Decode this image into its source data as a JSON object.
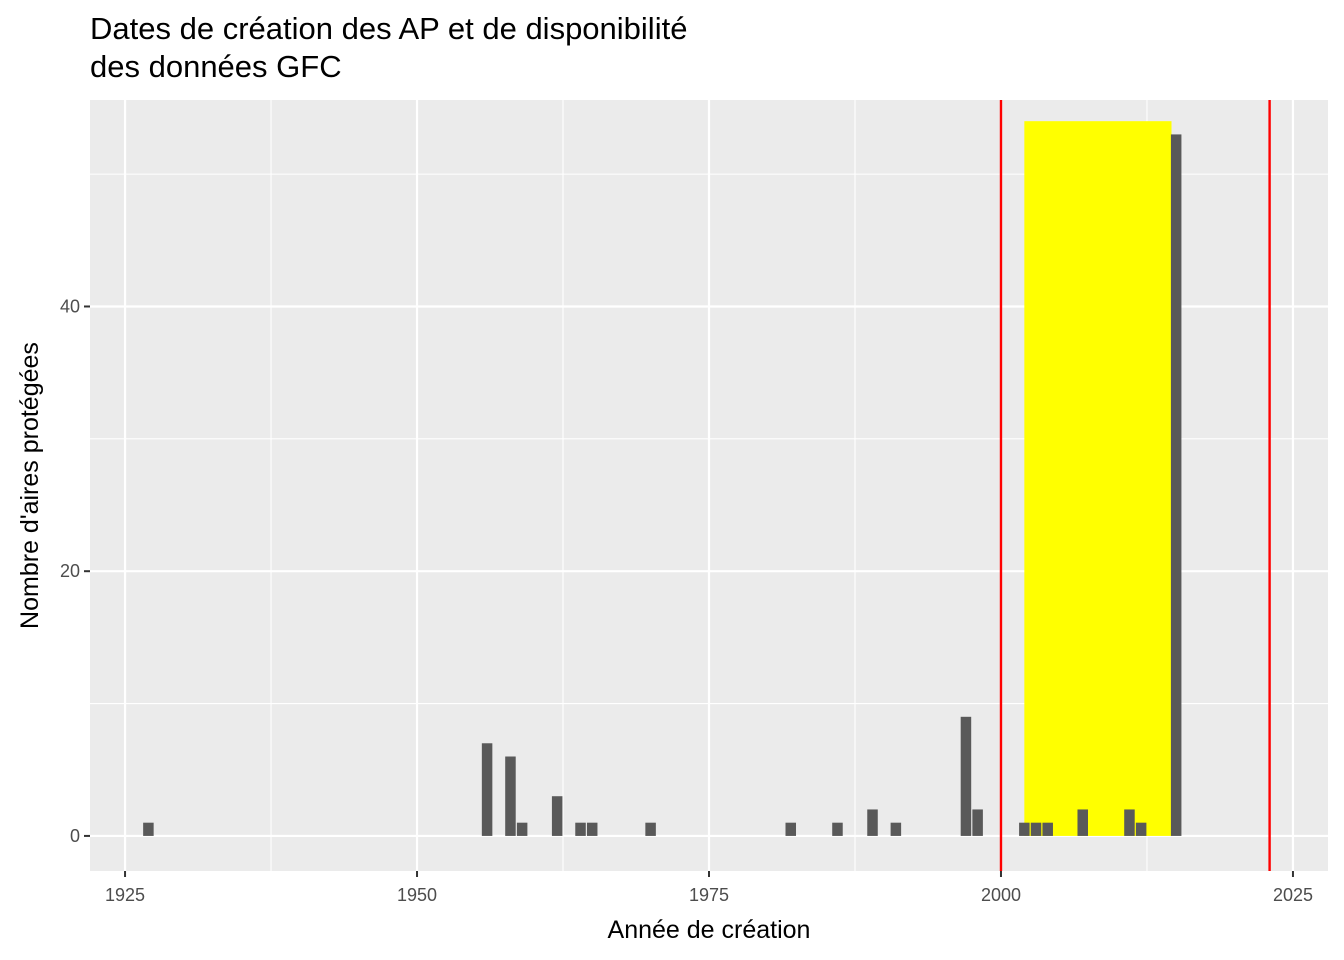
{
  "chart_data": {
    "type": "bar",
    "title": "Dates de création des AP et de disponibilité\ndes données GFC",
    "xlabel": "Année de création",
    "ylabel": "Nombre d'aires protégées",
    "xlim": [
      1922,
      2028
    ],
    "ylim": [
      -2.65,
      55.6
    ],
    "xticks": [
      1925,
      1950,
      1975,
      2000,
      2025
    ],
    "yticks": [
      0,
      20,
      40
    ],
    "grid": true,
    "colors": {
      "bars": "#595959",
      "highlight": "#ffff00",
      "vlines": "#ff0000",
      "panel": "#ebebeb",
      "grid": "#ffffff"
    },
    "highlight_rect": {
      "x_start": 2002,
      "x_end": 2014.6,
      "y_start": 0,
      "y_end": 54
    },
    "vlines": [
      2000,
      2023
    ],
    "bars": [
      {
        "x": 1927,
        "y": 1
      },
      {
        "x": 1956,
        "y": 7
      },
      {
        "x": 1958,
        "y": 6
      },
      {
        "x": 1959,
        "y": 1
      },
      {
        "x": 1962,
        "y": 3
      },
      {
        "x": 1964,
        "y": 1
      },
      {
        "x": 1965,
        "y": 1
      },
      {
        "x": 1970,
        "y": 1
      },
      {
        "x": 1982,
        "y": 1
      },
      {
        "x": 1986,
        "y": 1
      },
      {
        "x": 1989,
        "y": 2
      },
      {
        "x": 1991,
        "y": 1
      },
      {
        "x": 1997,
        "y": 9
      },
      {
        "x": 1998,
        "y": 2
      },
      {
        "x": 2002,
        "y": 1
      },
      {
        "x": 2003,
        "y": 1
      },
      {
        "x": 2004,
        "y": 1
      },
      {
        "x": 2007,
        "y": 2
      },
      {
        "x": 2011,
        "y": 2
      },
      {
        "x": 2012,
        "y": 1
      },
      {
        "x": 2015,
        "y": 53
      }
    ]
  }
}
